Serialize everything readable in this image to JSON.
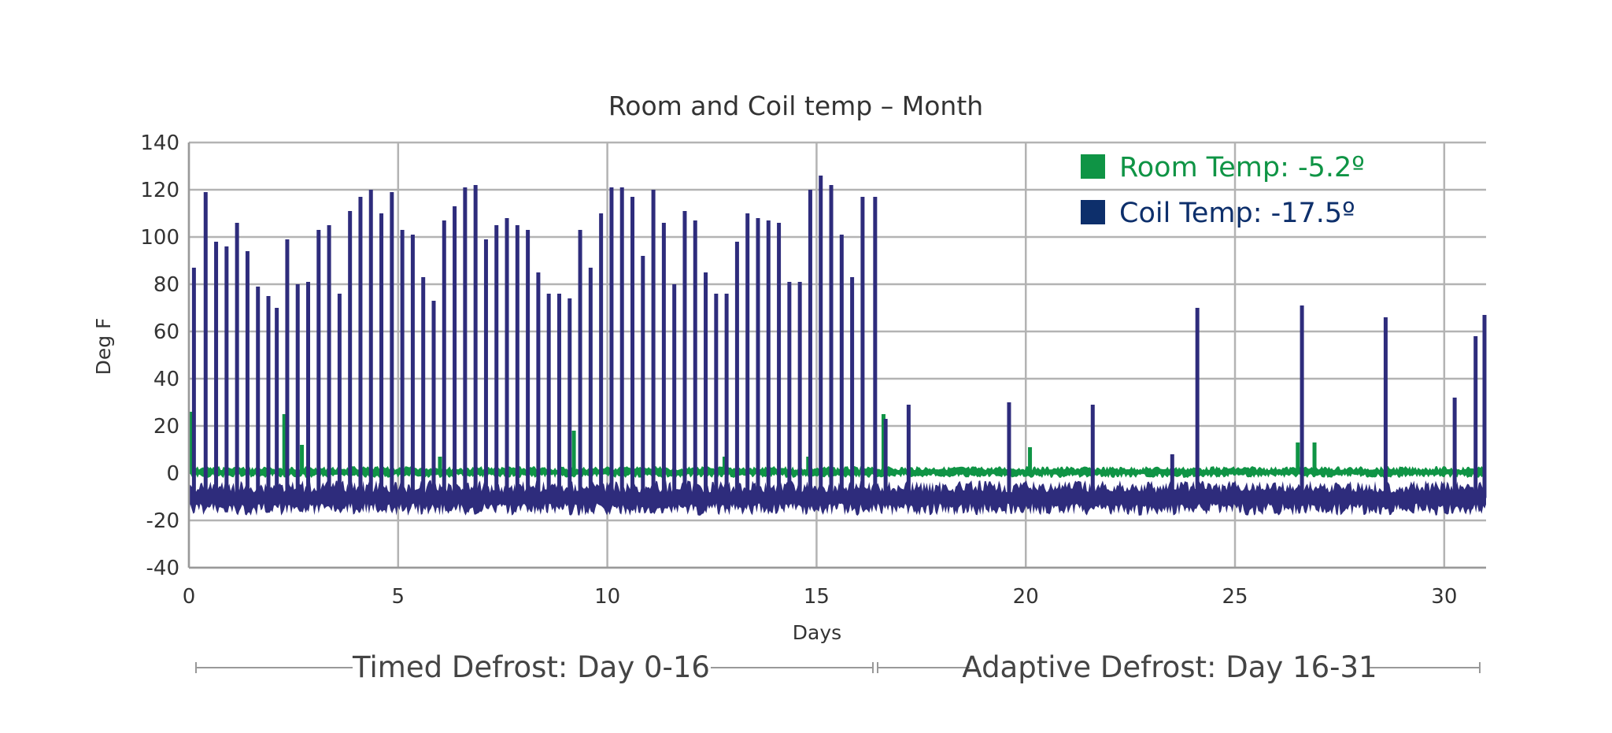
{
  "chart_data": {
    "type": "line",
    "title": "Room and Coil temp – Month",
    "xlabel": "Days",
    "ylabel": "Deg F",
    "xlim": [
      0,
      31
    ],
    "ylim": [
      -40,
      140
    ],
    "xticks": [
      "0",
      "5",
      "10",
      "15",
      "20",
      "25",
      "30"
    ],
    "yticks": [
      "140",
      "120",
      "100",
      "80",
      "60",
      "40",
      "20",
      "0",
      "-20",
      "-40"
    ],
    "grid": true,
    "legend_position": "top-right",
    "series": [
      {
        "name": "Room Temp: -5.2º",
        "color": "#0f9445",
        "baseline_range": [
          -2,
          3
        ],
        "spikes": [
          {
            "x": 0.05,
            "y": 26
          },
          {
            "x": 2.28,
            "y": 25
          },
          {
            "x": 2.7,
            "y": 12
          },
          {
            "x": 6.0,
            "y": 7
          },
          {
            "x": 9.2,
            "y": 18
          },
          {
            "x": 12.8,
            "y": 7
          },
          {
            "x": 14.8,
            "y": 7
          },
          {
            "x": 16.6,
            "y": 25
          },
          {
            "x": 20.1,
            "y": 11
          },
          {
            "x": 26.5,
            "y": 13
          },
          {
            "x": 26.9,
            "y": 13
          }
        ]
      },
      {
        "name": "Coil Temp: -17.5º",
        "color": "#2e2c7c",
        "baseline_range": [
          -18,
          -3
        ],
        "spikes": [
          {
            "x": 0.12,
            "y": 87
          },
          {
            "x": 0.4,
            "y": 119
          },
          {
            "x": 0.65,
            "y": 98
          },
          {
            "x": 0.9,
            "y": 96
          },
          {
            "x": 1.15,
            "y": 106
          },
          {
            "x": 1.4,
            "y": 94
          },
          {
            "x": 1.65,
            "y": 79
          },
          {
            "x": 1.9,
            "y": 75
          },
          {
            "x": 2.1,
            "y": 70
          },
          {
            "x": 2.35,
            "y": 99
          },
          {
            "x": 2.6,
            "y": 80
          },
          {
            "x": 2.85,
            "y": 81
          },
          {
            "x": 3.1,
            "y": 103
          },
          {
            "x": 3.35,
            "y": 105
          },
          {
            "x": 3.6,
            "y": 76
          },
          {
            "x": 3.85,
            "y": 111
          },
          {
            "x": 4.1,
            "y": 117
          },
          {
            "x": 4.35,
            "y": 120
          },
          {
            "x": 4.6,
            "y": 110
          },
          {
            "x": 4.85,
            "y": 119
          },
          {
            "x": 5.1,
            "y": 103
          },
          {
            "x": 5.35,
            "y": 101
          },
          {
            "x": 5.6,
            "y": 83
          },
          {
            "x": 5.85,
            "y": 73
          },
          {
            "x": 6.1,
            "y": 107
          },
          {
            "x": 6.35,
            "y": 113
          },
          {
            "x": 6.6,
            "y": 121
          },
          {
            "x": 6.85,
            "y": 122
          },
          {
            "x": 7.1,
            "y": 99
          },
          {
            "x": 7.35,
            "y": 105
          },
          {
            "x": 7.6,
            "y": 108
          },
          {
            "x": 7.85,
            "y": 105
          },
          {
            "x": 8.1,
            "y": 103
          },
          {
            "x": 8.35,
            "y": 85
          },
          {
            "x": 8.6,
            "y": 76
          },
          {
            "x": 8.85,
            "y": 76
          },
          {
            "x": 9.1,
            "y": 74
          },
          {
            "x": 9.35,
            "y": 103
          },
          {
            "x": 9.6,
            "y": 87
          },
          {
            "x": 9.85,
            "y": 110
          },
          {
            "x": 10.1,
            "y": 121
          },
          {
            "x": 10.35,
            "y": 121
          },
          {
            "x": 10.6,
            "y": 117
          },
          {
            "x": 10.85,
            "y": 92
          },
          {
            "x": 11.1,
            "y": 120
          },
          {
            "x": 11.35,
            "y": 106
          },
          {
            "x": 11.6,
            "y": 80
          },
          {
            "x": 11.85,
            "y": 111
          },
          {
            "x": 12.1,
            "y": 107
          },
          {
            "x": 12.35,
            "y": 85
          },
          {
            "x": 12.6,
            "y": 76
          },
          {
            "x": 12.85,
            "y": 76
          },
          {
            "x": 13.1,
            "y": 98
          },
          {
            "x": 13.35,
            "y": 110
          },
          {
            "x": 13.6,
            "y": 108
          },
          {
            "x": 13.85,
            "y": 107
          },
          {
            "x": 14.1,
            "y": 106
          },
          {
            "x": 14.35,
            "y": 81
          },
          {
            "x": 14.6,
            "y": 81
          },
          {
            "x": 14.85,
            "y": 120
          },
          {
            "x": 15.1,
            "y": 126
          },
          {
            "x": 15.35,
            "y": 122
          },
          {
            "x": 15.6,
            "y": 101
          },
          {
            "x": 15.85,
            "y": 83
          },
          {
            "x": 16.1,
            "y": 117
          },
          {
            "x": 16.4,
            "y": 117
          },
          {
            "x": 16.65,
            "y": 23
          },
          {
            "x": 17.2,
            "y": 29
          },
          {
            "x": 19.6,
            "y": 30
          },
          {
            "x": 21.6,
            "y": 29
          },
          {
            "x": 23.5,
            "y": 8
          },
          {
            "x": 24.1,
            "y": 70
          },
          {
            "x": 26.6,
            "y": 71
          },
          {
            "x": 28.6,
            "y": 66
          },
          {
            "x": 30.25,
            "y": 32
          },
          {
            "x": 30.75,
            "y": 58
          },
          {
            "x": 31.1,
            "y": 67
          }
        ]
      }
    ]
  },
  "annotations": {
    "phase1": "Timed Defrost: Day 0-16",
    "phase2": "Adaptive Defrost: Day 16-31"
  }
}
